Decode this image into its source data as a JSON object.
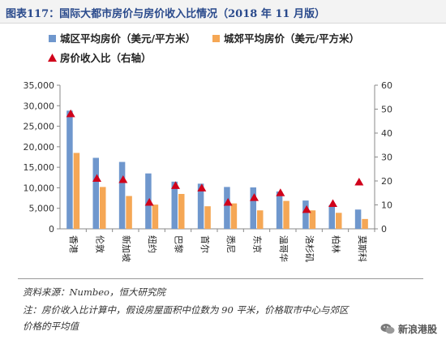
{
  "title": "图表117：国际大都市房价与房价收入比情况（2018 年 11 月版）",
  "chart_data": {
    "type": "bar",
    "categories": [
      "香港",
      "伦敦",
      "新加坡",
      "纽约",
      "巴黎",
      "首尔",
      "悉尼",
      "东京",
      "温哥华",
      "洛杉矶",
      "柏林",
      "莫斯科"
    ],
    "series": [
      {
        "name": "城区平均房价（美元/平方米）",
        "type": "bar",
        "axis": "left",
        "color": "#6f97cd",
        "values": [
          28800,
          17300,
          16300,
          13500,
          11500,
          11000,
          10200,
          10100,
          9100,
          6900,
          5800,
          4700
        ]
      },
      {
        "name": "城郊平均房价（美元/平方米）",
        "type": "bar",
        "axis": "left",
        "color": "#f5a755",
        "values": [
          18500,
          10200,
          8000,
          5900,
          8500,
          5500,
          6200,
          4500,
          6800,
          4500,
          3900,
          2400
        ]
      },
      {
        "name": "房价收入比（右轴）",
        "type": "scatter",
        "marker": "triangle",
        "axis": "right",
        "color": "#d0021b",
        "values": [
          48,
          21,
          20.5,
          11,
          18,
          17,
          11,
          13,
          15,
          8,
          10.5,
          19.5
        ]
      }
    ],
    "y_left": {
      "min": 0,
      "max": 35000,
      "ticks": [
        "0",
        "5,000",
        "10,000",
        "15,000",
        "20,000",
        "25,000",
        "30,000",
        "35,000"
      ]
    },
    "y_right": {
      "min": 0,
      "max": 60,
      "ticks": [
        "0",
        "10",
        "20",
        "30",
        "40",
        "50",
        "60"
      ]
    },
    "legend_position": "top-left",
    "grid": false
  },
  "footer": {
    "source": "资料来源：Numbeo，恒大研究院",
    "note_line1": "注：房价收入比计算中，假设房屋面积中位数为 90 平米，价格取市中心与郊区",
    "note_line2": "价格的平均值"
  },
  "watermark": {
    "text": "新浪港股",
    "icon": "wechat-bubble-icon"
  }
}
